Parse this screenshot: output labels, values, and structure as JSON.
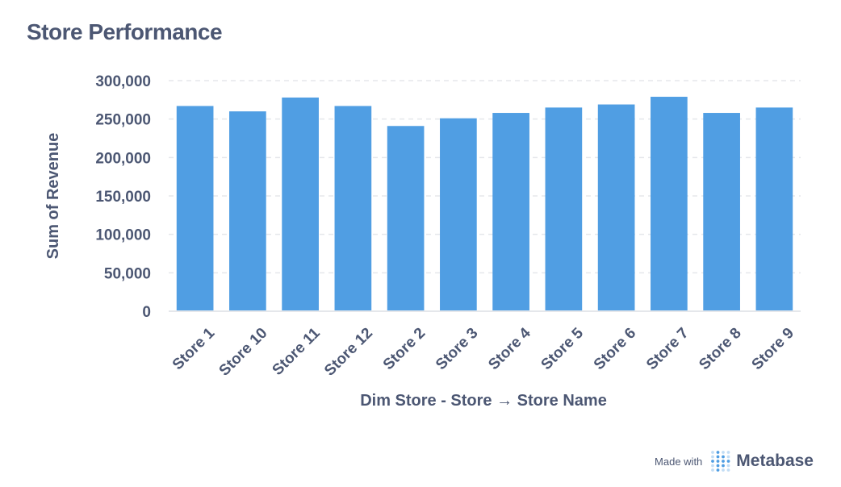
{
  "header": {
    "title": "Store Performance"
  },
  "footer": {
    "made_with": "Made with",
    "brand": "Metabase",
    "logo_icon": "metabase-dots-logo"
  },
  "colors": {
    "bar": "#509ee3",
    "text": "#4c5773",
    "grid": "#e5e7eb",
    "logo": "#509ee3"
  },
  "chart_data": {
    "type": "bar",
    "categories": [
      "Store 1",
      "Store 10",
      "Store 11",
      "Store 12",
      "Store 2",
      "Store 3",
      "Store 4",
      "Store 5",
      "Store 6",
      "Store 7",
      "Store 8",
      "Store 9"
    ],
    "values": [
      267000,
      260000,
      278000,
      267000,
      241000,
      251000,
      258000,
      265000,
      269000,
      279000,
      258000,
      265000
    ],
    "xlabel": "Dim Store - Store → Store Name",
    "ylabel": "Sum of Revenue",
    "ylim": [
      0,
      300000
    ],
    "yticks": [
      0,
      50000,
      100000,
      150000,
      200000,
      250000,
      300000
    ],
    "ytick_labels": [
      "0",
      "50,000",
      "100,000",
      "150,000",
      "200,000",
      "250,000",
      "300,000"
    ],
    "grid": true,
    "legend": "none"
  }
}
